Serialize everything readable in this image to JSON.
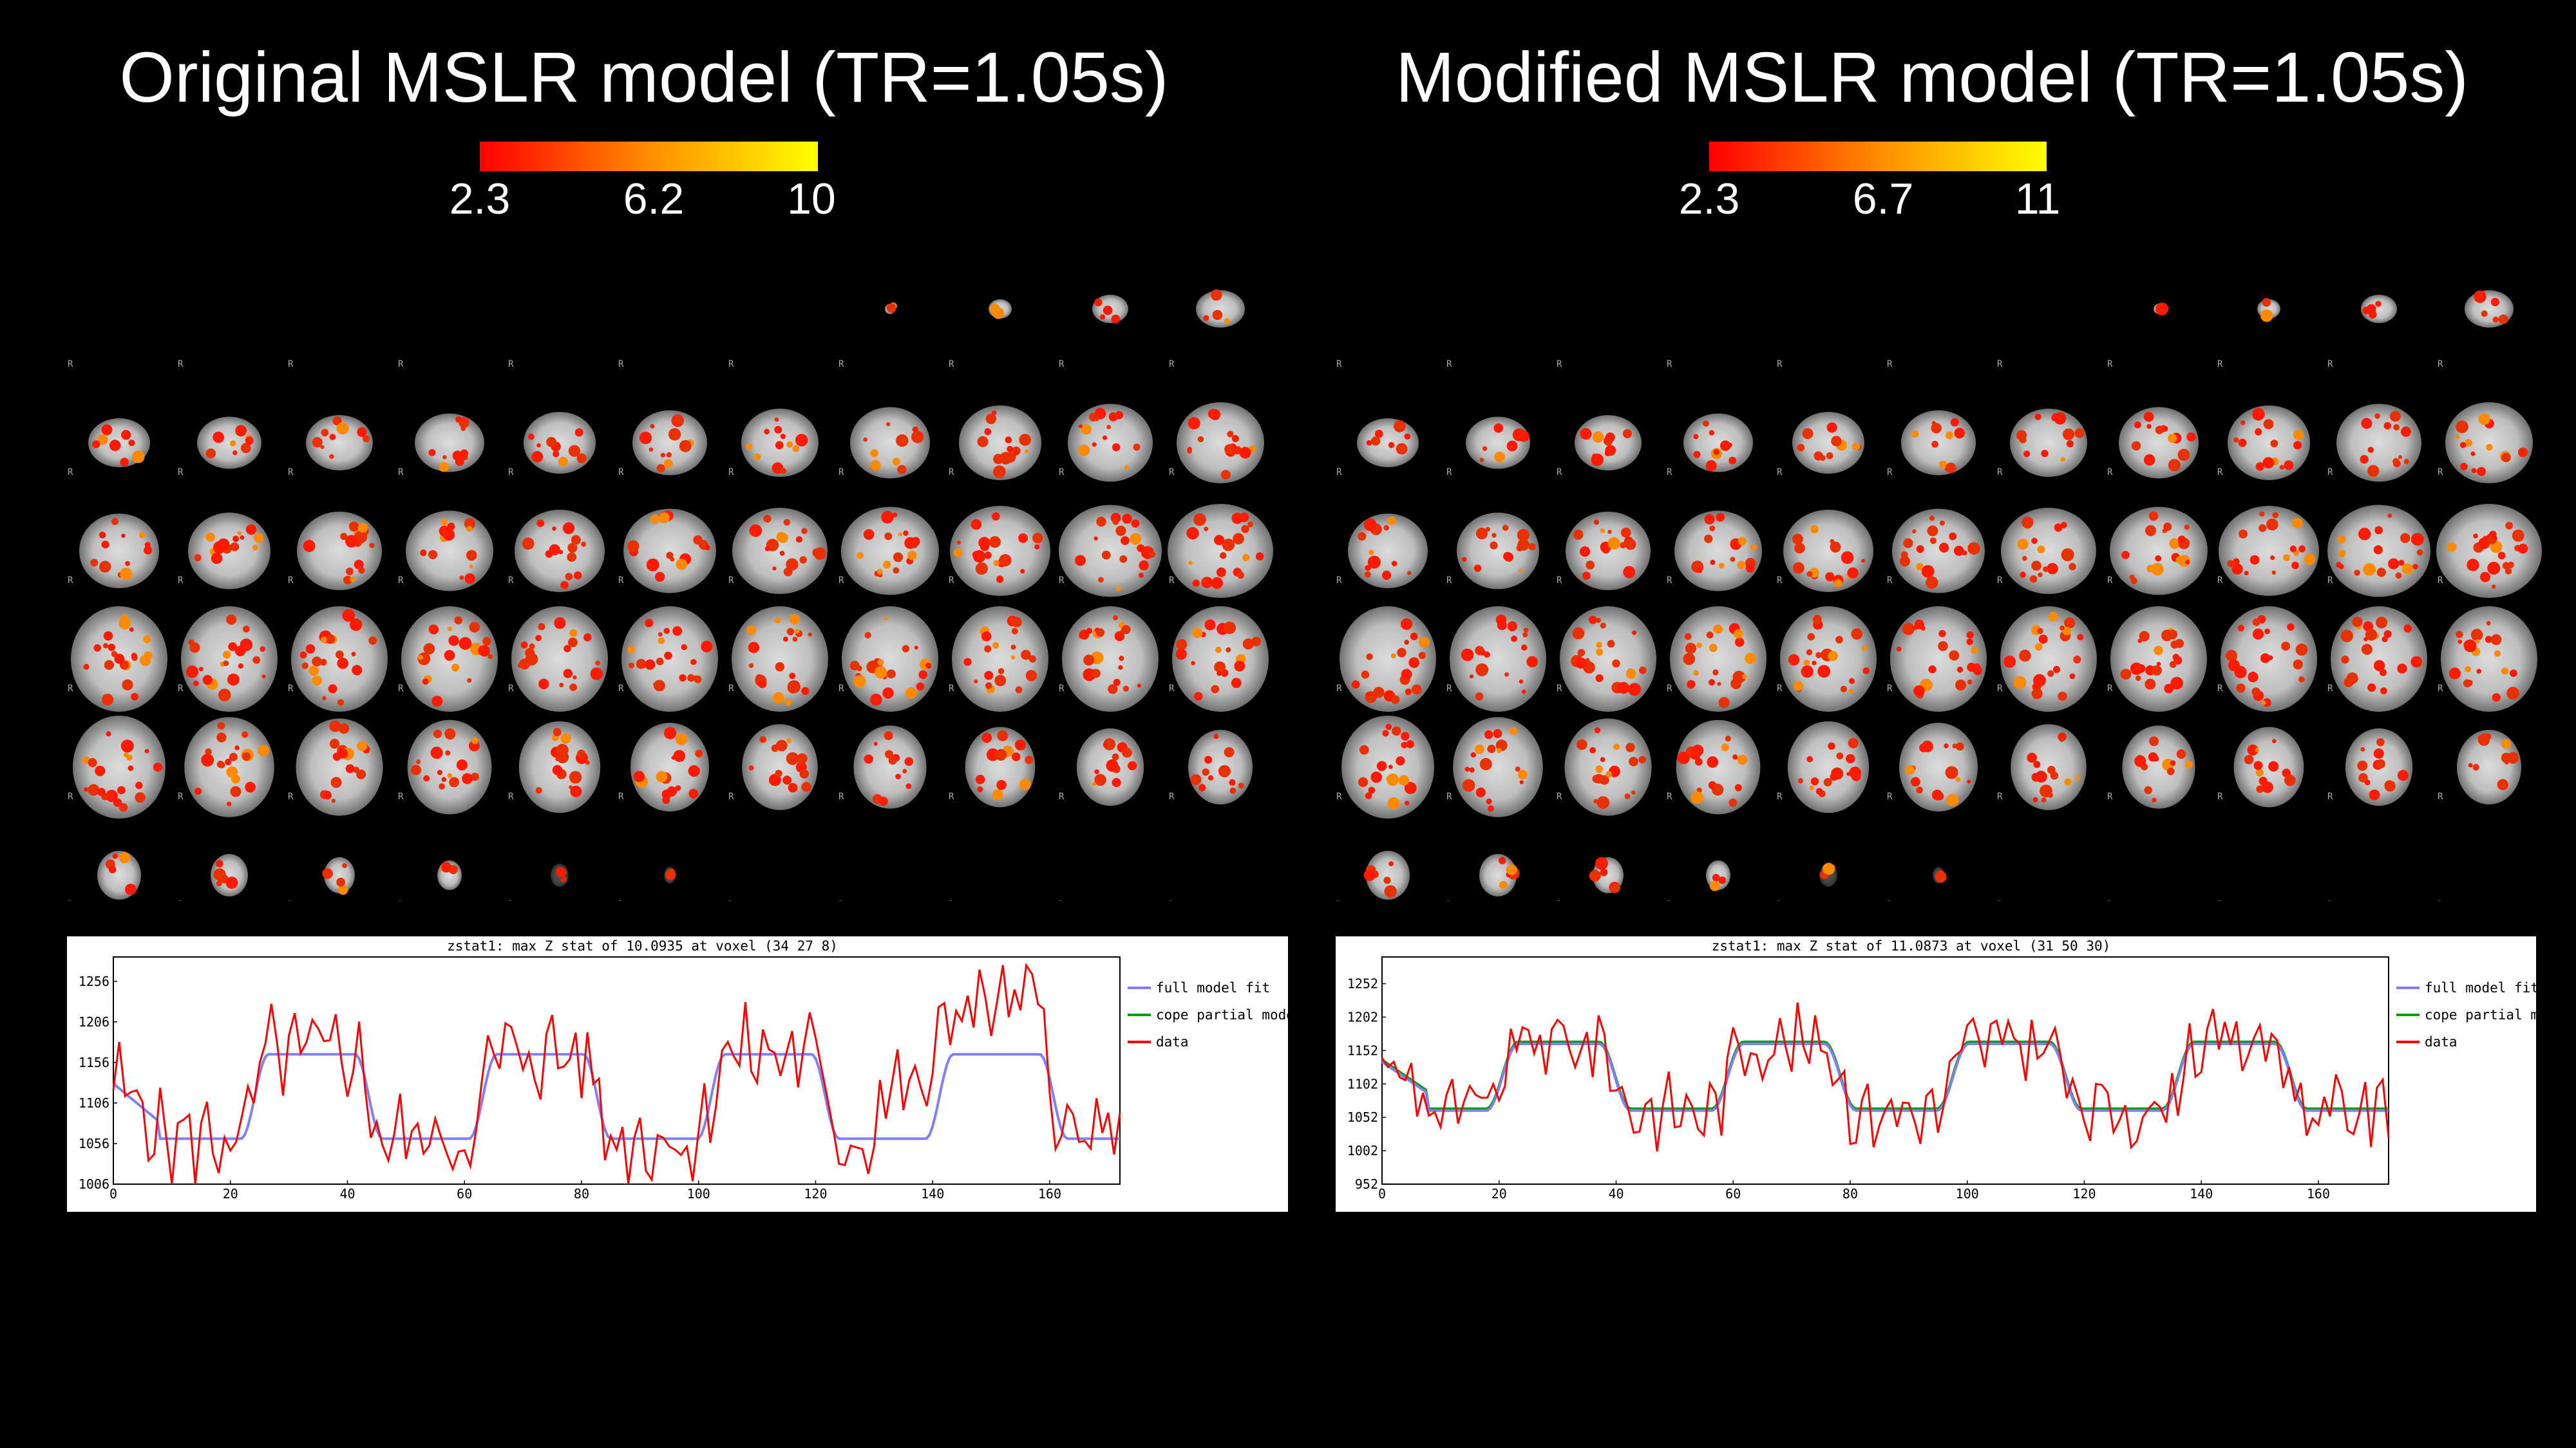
{
  "left": {
    "title": "Original MSLR model (TR=1.05s)",
    "colorbar": {
      "min_label": "2.3",
      "mid_label": "6.2",
      "max_label": "10",
      "colors": [
        "#ff0000",
        "#ff8c00",
        "#ffff00"
      ]
    },
    "orientation_label": "R",
    "plot": {
      "title": "zstat1: max Z stat of 10.0935 at voxel (34 27 8)",
      "xticks": [
        "0",
        "20",
        "40",
        "60",
        "80",
        "100",
        "120",
        "140",
        "160"
      ],
      "yticks": [
        "1006",
        "1056",
        "1106",
        "1156",
        "1206",
        "1256"
      ],
      "xlim": [
        0,
        172
      ],
      "ylim": [
        1006,
        1286
      ],
      "legend": [
        {
          "label": "full model fit",
          "color": "#8080ff"
        },
        {
          "label": "cope partial model fit",
          "color": "#00a000"
        },
        {
          "label": "data",
          "color": "#ff0000"
        }
      ]
    }
  },
  "right": {
    "title": "Modified MSLR model (TR=1.05s)",
    "colorbar": {
      "min_label": "2.3",
      "mid_label": "6.7",
      "max_label": "11",
      "colors": [
        "#ff0000",
        "#ff8c00",
        "#ffff00"
      ]
    },
    "orientation_label": "R",
    "plot": {
      "title": "zstat1: max Z stat of 11.0873 at voxel (31 50 30)",
      "xticks": [
        "0",
        "20",
        "40",
        "60",
        "80",
        "100",
        "120",
        "140",
        "160"
      ],
      "yticks": [
        "952",
        "1002",
        "1052",
        "1102",
        "1152",
        "1202",
        "1252"
      ],
      "xlim": [
        0,
        172
      ],
      "ylim": [
        952,
        1292
      ],
      "legend": [
        {
          "label": "full model fit",
          "color": "#8080ff"
        },
        {
          "label": "cope partial model fit",
          "color": "#00a000"
        },
        {
          "label": "data",
          "color": "#ff0000"
        }
      ]
    }
  }
}
